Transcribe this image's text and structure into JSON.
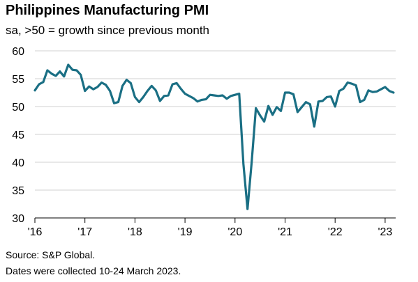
{
  "title": "Philippines Manufacturing PMI",
  "subtitle": "sa, >50 = growth since previous month",
  "footer": {
    "source": "Source: S&P Global.",
    "note": "Dates were collected 10-24 March 2023."
  },
  "chart_data": {
    "type": "line",
    "title": "Philippines Manufacturing PMI",
    "xlabel": "",
    "ylabel": "",
    "ylim": [
      30,
      60
    ],
    "yticks": [
      30,
      35,
      40,
      45,
      50,
      55,
      60
    ],
    "xticks": [
      "'16",
      "'17",
      "'18",
      "'19",
      "'20",
      "'21",
      "'22",
      "'23"
    ],
    "grid": "horizontal",
    "line_color": "#1a6f84",
    "series": [
      {
        "start": "2016-01",
        "frequency": "monthly",
        "values": [
          52.9,
          54.0,
          54.4,
          56.5,
          55.9,
          55.5,
          56.3,
          55.4,
          57.5,
          56.6,
          56.5,
          55.7,
          52.8,
          53.6,
          53.1,
          53.5,
          54.3,
          53.9,
          52.8,
          50.6,
          50.8,
          53.7,
          54.8,
          54.2,
          51.7,
          50.8,
          51.7,
          52.8,
          53.7,
          52.9,
          51.0,
          51.9,
          52.0,
          54.0,
          54.2,
          53.2,
          52.3,
          51.9,
          51.5,
          50.9,
          51.2,
          51.3,
          52.1,
          52.0,
          51.9,
          52.0,
          51.4,
          51.9,
          52.1,
          52.3,
          39.7,
          31.6,
          40.1,
          49.7,
          48.4,
          47.3,
          50.1,
          48.5,
          49.9,
          49.2,
          52.5,
          52.5,
          52.2,
          49.0,
          49.9,
          50.8,
          50.4,
          46.4,
          50.9,
          51.0,
          51.7,
          51.8,
          50.0,
          52.8,
          53.2,
          54.3,
          54.1,
          53.8,
          50.8,
          51.2,
          52.9,
          52.6,
          52.7,
          53.1,
          53.5,
          52.8,
          52.5
        ]
      }
    ]
  }
}
